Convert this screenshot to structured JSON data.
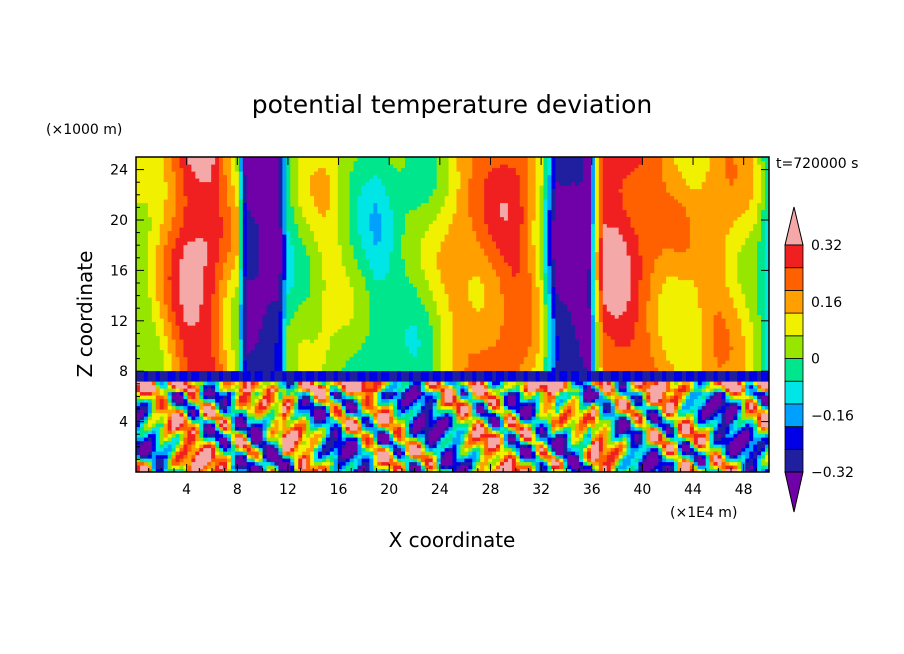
{
  "chart_data": {
    "type": "heatmap",
    "title": "potential temperature deviation",
    "xlabel": "X coordinate",
    "ylabel": "Z coordinate",
    "x_units": "(×1E4 m)",
    "y_units": "(×1000 m)",
    "time_label": "t=720000 s",
    "xlim": [
      0,
      50
    ],
    "ylim": [
      0,
      25
    ],
    "x_ticks": [
      4,
      8,
      12,
      16,
      20,
      24,
      28,
      32,
      36,
      40,
      44,
      48
    ],
    "x_tick_labels": [
      "4",
      "8",
      "12",
      "16",
      "20",
      "24",
      "28",
      "32",
      "36",
      "40",
      "44",
      "48"
    ],
    "y_ticks": [
      4,
      8,
      12,
      16,
      20,
      24
    ],
    "y_tick_labels": [
      "4",
      "8",
      "12",
      "16",
      "20",
      "24"
    ],
    "colorbar": {
      "levels": [
        -0.4,
        -0.32,
        -0.24,
        -0.16,
        -0.08,
        0,
        0.08,
        0.16,
        0.24,
        0.32,
        0.4
      ],
      "labeled_levels": [
        0.32,
        0.16,
        0,
        -0.16,
        -0.32
      ],
      "labels": [
        "0.32",
        "0.16",
        "0",
        "−0.16",
        "−0.32"
      ],
      "colors": [
        "#7000a8",
        "#1f1fa0",
        "#0000e6",
        "#00a0ff",
        "#00e6e6",
        "#00e68c",
        "#96e600",
        "#f0f000",
        "#ffa000",
        "#ff6000",
        "#f02020",
        "#f4a8a8"
      ],
      "extend": "both"
    },
    "upper_columns": [
      {
        "x": 0,
        "v": 0.04
      },
      {
        "x": 1,
        "v": 0.06
      },
      {
        "x": 2,
        "v": 0.16
      },
      {
        "x": 3,
        "v": 0.3
      },
      {
        "x": 4,
        "v": 0.42
      },
      {
        "x": 5,
        "v": 0.44
      },
      {
        "x": 6,
        "v": 0.4
      },
      {
        "x": 7,
        "v": 0.24
      },
      {
        "x": 8,
        "v": 0.1
      },
      {
        "x": 8.7,
        "v": -0.44
      },
      {
        "x": 10,
        "v": -0.46
      },
      {
        "x": 11.3,
        "v": -0.44
      },
      {
        "x": 12,
        "v": -0.05
      },
      {
        "x": 13,
        "v": 0.04
      },
      {
        "x": 14,
        "v": 0.08
      },
      {
        "x": 15,
        "v": 0.12
      },
      {
        "x": 16,
        "v": 0.08
      },
      {
        "x": 17,
        "v": 0.02
      },
      {
        "x": 18,
        "v": -0.04
      },
      {
        "x": 19,
        "v": -0.1
      },
      {
        "x": 20,
        "v": -0.06
      },
      {
        "x": 21,
        "v": -0.02
      },
      {
        "x": 22,
        "v": -0.02
      },
      {
        "x": 23,
        "v": 0.02
      },
      {
        "x": 24,
        "v": 0.1
      },
      {
        "x": 25,
        "v": 0.18
      },
      {
        "x": 26,
        "v": 0.22
      },
      {
        "x": 27,
        "v": 0.24
      },
      {
        "x": 28,
        "v": 0.28
      },
      {
        "x": 29,
        "v": 0.32
      },
      {
        "x": 30,
        "v": 0.34
      },
      {
        "x": 31,
        "v": 0.26
      },
      {
        "x": 32,
        "v": 0.1
      },
      {
        "x": 33.2,
        "v": -0.44
      },
      {
        "x": 34.5,
        "v": -0.46
      },
      {
        "x": 35.8,
        "v": -0.44
      },
      {
        "x": 36.5,
        "v": 0.2
      },
      {
        "x": 37,
        "v": 0.4
      },
      {
        "x": 38,
        "v": 0.42
      },
      {
        "x": 39,
        "v": 0.38
      },
      {
        "x": 40,
        "v": 0.32
      },
      {
        "x": 41,
        "v": 0.26
      },
      {
        "x": 42,
        "v": 0.2
      },
      {
        "x": 43,
        "v": 0.18
      },
      {
        "x": 44,
        "v": 0.16
      },
      {
        "x": 45,
        "v": 0.2
      },
      {
        "x": 46,
        "v": 0.24
      },
      {
        "x": 47,
        "v": 0.2
      },
      {
        "x": 48,
        "v": 0.14
      },
      {
        "x": 49,
        "v": 0.06
      },
      {
        "x": 50,
        "v": -0.14
      }
    ],
    "inversion_height": 8,
    "lower_layer_pattern": "turbulent mixing below z=8, values from -0.4 to 0.4"
  }
}
